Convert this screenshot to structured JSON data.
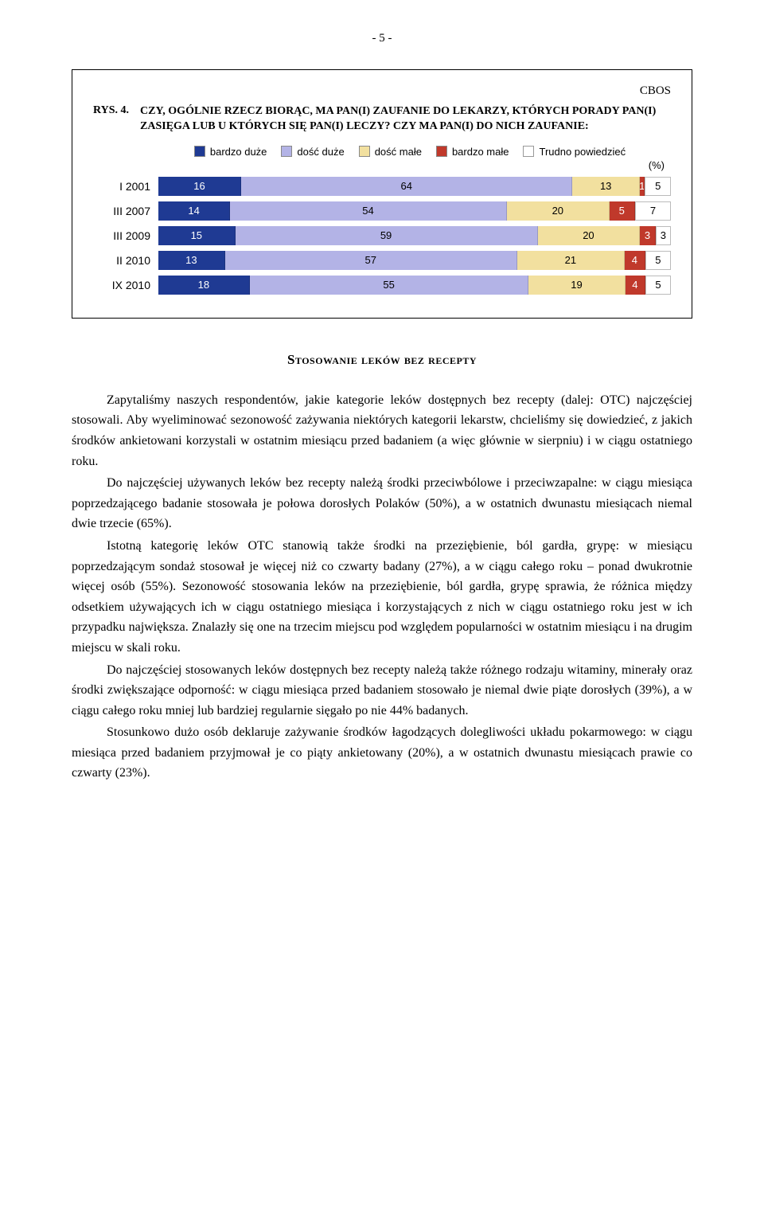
{
  "page_number": "- 5 -",
  "chart_box": {
    "cbos": "CBOS",
    "rys_label": "RYS. 4.",
    "title": "CZY, OGÓLNIE RZECZ BIORĄC, MA PAN(I) ZAUFANIE DO LEKARZY, KTÓRYCH PORADY PAN(I) ZASIĘGA LUB U KTÓRYCH SIĘ PAN(I) LECZY? CZY MA PAN(I) DO NICH ZAUFANIE:",
    "pct_label": "(%)",
    "legend": [
      {
        "label": "bardzo duże",
        "color": "#1f3a93"
      },
      {
        "label": "dość duże",
        "color": "#b3b3e6"
      },
      {
        "label": "dość małe",
        "color": "#f2e09f"
      },
      {
        "label": "bardzo małe",
        "color": "#c0392b"
      },
      {
        "label": "Trudno powiedzieć",
        "color": "#ffffff"
      }
    ],
    "rows": [
      {
        "label": "I 2001",
        "segments": [
          {
            "v": 16,
            "c": "#1f3a93",
            "tc": "light"
          },
          {
            "v": 64,
            "c": "#b3b3e6",
            "tc": "dark"
          },
          {
            "v": 13,
            "c": "#f2e09f",
            "tc": "dark"
          },
          {
            "v": 1,
            "c": "#c0392b",
            "tc": "light"
          },
          {
            "v": 5,
            "c": "#ffffff",
            "tc": "dark",
            "border": true
          }
        ]
      },
      {
        "label": "III 2007",
        "segments": [
          {
            "v": 14,
            "c": "#1f3a93",
            "tc": "light"
          },
          {
            "v": 54,
            "c": "#b3b3e6",
            "tc": "dark"
          },
          {
            "v": 20,
            "c": "#f2e09f",
            "tc": "dark"
          },
          {
            "v": 5,
            "c": "#c0392b",
            "tc": "light"
          },
          {
            "v": 7,
            "c": "#ffffff",
            "tc": "dark",
            "border": true
          }
        ]
      },
      {
        "label": "III 2009",
        "segments": [
          {
            "v": 15,
            "c": "#1f3a93",
            "tc": "light"
          },
          {
            "v": 59,
            "c": "#b3b3e6",
            "tc": "dark"
          },
          {
            "v": 20,
            "c": "#f2e09f",
            "tc": "dark"
          },
          {
            "v": 3,
            "c": "#c0392b",
            "tc": "light"
          },
          {
            "v": 3,
            "c": "#ffffff",
            "tc": "dark",
            "border": true
          }
        ]
      },
      {
        "label": "II 2010",
        "segments": [
          {
            "v": 13,
            "c": "#1f3a93",
            "tc": "light"
          },
          {
            "v": 57,
            "c": "#b3b3e6",
            "tc": "dark"
          },
          {
            "v": 21,
            "c": "#f2e09f",
            "tc": "dark"
          },
          {
            "v": 4,
            "c": "#c0392b",
            "tc": "light"
          },
          {
            "v": 5,
            "c": "#ffffff",
            "tc": "dark",
            "border": true
          }
        ]
      },
      {
        "label": "IX 2010",
        "segments": [
          {
            "v": 18,
            "c": "#1f3a93",
            "tc": "light"
          },
          {
            "v": 55,
            "c": "#b3b3e6",
            "tc": "dark"
          },
          {
            "v": 19,
            "c": "#f2e09f",
            "tc": "dark"
          },
          {
            "v": 4,
            "c": "#c0392b",
            "tc": "light"
          },
          {
            "v": 5,
            "c": "#ffffff",
            "tc": "dark",
            "border": true
          }
        ]
      }
    ]
  },
  "section_heading": "Stosowanie leków bez recepty",
  "paragraphs": [
    "Zapytaliśmy naszych respondentów, jakie kategorie leków dostępnych bez recepty (dalej: OTC)  najczęściej stosowali. Aby wyeliminować sezonowość zażywania niektórych kategorii lekarstw, chcieliśmy się dowiedzieć, z jakich środków ankietowani korzystali w ostatnim miesiącu przed badaniem (a więc głównie w sierpniu) i w ciągu ostatniego roku.",
    "Do najczęściej używanych leków bez recepty należą środki przeciwbólowe i przeciwzapalne: w ciągu miesiąca poprzedzającego badanie stosowała je połowa dorosłych Polaków (50%), a w ostatnich dwunastu miesiącach niemal dwie trzecie (65%).",
    "Istotną kategorię leków OTC stanowią także środki na przeziębienie, ból gardła, grypę: w miesiącu poprzedzającym sondaż stosował je więcej niż co czwarty badany (27%), a w ciągu całego roku – ponad dwukrotnie więcej osób (55%). Sezonowość stosowania leków na przeziębienie, ból gardła, grypę sprawia, że różnica między odsetkiem używających ich w ciągu ostatniego miesiąca i korzystających z nich w ciągu ostatniego roku jest w ich przypadku największa. Znalazły się one na trzecim miejscu pod względem popularności w ostatnim miesiącu i na drugim miejscu w skali roku.",
    "Do najczęściej stosowanych leków dostępnych bez recepty należą także różnego rodzaju witaminy, minerały oraz środki zwiększające odporność: w ciągu miesiąca przed badaniem stosowało je niemal dwie piąte dorosłych (39%), a w ciągu całego roku  mniej lub bardziej regularnie sięgało po nie 44% badanych.",
    "Stosunkowo dużo osób deklaruje zażywanie środków łagodzących dolegliwości układu pokarmowego: w ciągu miesiąca przed badaniem przyjmował je co piąty ankietowany (20%), a w ostatnich dwunastu miesiącach prawie co czwarty (23%)."
  ]
}
